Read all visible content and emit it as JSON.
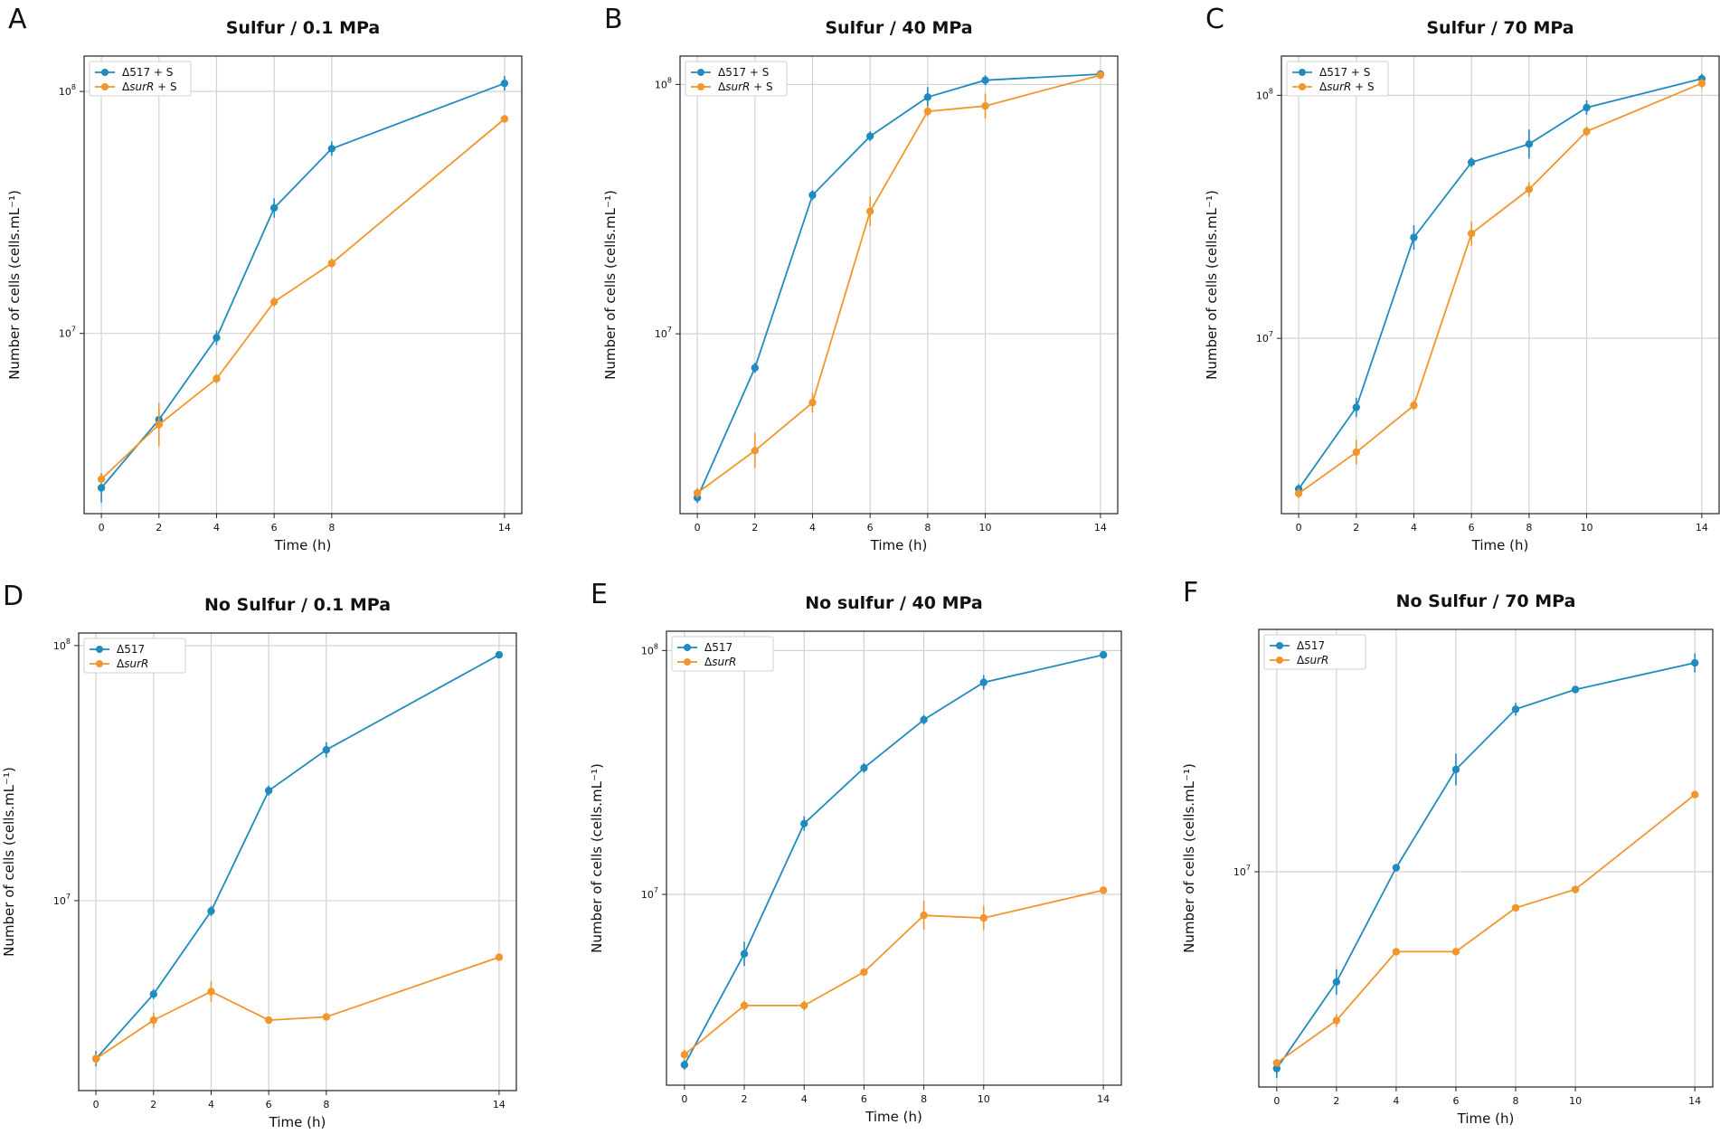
{
  "colors": {
    "blue": "#1f8bbf",
    "orange": "#f0962c"
  },
  "chart_data": [
    {
      "panel": "A",
      "type": "line",
      "title": "Sulfur / 0.1 MPa",
      "xlabel": "Time (h)",
      "ylabel": "Number of cells (cells.mL⁻¹)",
      "yscale": "log",
      "ylim": [
        1800000,
        140000000
      ],
      "xticks": [
        0,
        2,
        4,
        6,
        8,
        14
      ],
      "xlim": [
        -0.6,
        14.6
      ],
      "ytick_labels": [
        {
          "value": 10000000,
          "exp": "7"
        },
        {
          "value": 100000000,
          "exp": "8"
        }
      ],
      "legend": "top-left",
      "series": [
        {
          "name": "Δ517 + S",
          "legend_prefix": "Δ517 + S",
          "legend_italic": "",
          "legend_suffix": "",
          "color": "#1f8bbf",
          "x": [
            0,
            2,
            4,
            6,
            8,
            14
          ],
          "y": [
            2300000,
            4400000,
            9600000,
            33000000,
            58000000,
            108000000
          ],
          "err": [
            0.06,
            0.04,
            0.03,
            0.04,
            0.03,
            0.03
          ]
        },
        {
          "name": "ΔsurR + S",
          "legend_prefix": "Δ",
          "legend_italic": "surR",
          "legend_suffix": " + S",
          "color": "#f0962c",
          "x": [
            0,
            2,
            4,
            6,
            8,
            14
          ],
          "y": [
            2500000,
            4200000,
            6500000,
            13500000,
            19500000,
            77000000
          ],
          "err": [
            0.02,
            0.09,
            0.02,
            0.02,
            0.02,
            0.01
          ]
        }
      ]
    },
    {
      "panel": "B",
      "type": "line",
      "title": "Sulfur / 40 MPa",
      "xlabel": "Time (h)",
      "ylabel": "Number of cells (cells.mL⁻¹)",
      "yscale": "log",
      "ylim": [
        1900000,
        130000000
      ],
      "xticks": [
        0,
        2,
        4,
        6,
        8,
        10,
        14
      ],
      "xlim": [
        -0.6,
        14.6
      ],
      "ytick_labels": [
        {
          "value": 10000000,
          "exp": "7"
        },
        {
          "value": 100000000,
          "exp": "8"
        }
      ],
      "legend": "top-left",
      "series": [
        {
          "name": "Δ517 + S",
          "legend_prefix": "Δ517 + S",
          "legend_italic": "",
          "legend_suffix": "",
          "color": "#1f8bbf",
          "x": [
            0,
            2,
            4,
            6,
            8,
            10,
            14
          ],
          "y": [
            2200000,
            7300000,
            36000000,
            62000000,
            89000000,
            104000000,
            110000000
          ],
          "err": [
            0.02,
            0.02,
            0.02,
            0.02,
            0.04,
            0.02,
            0.01
          ]
        },
        {
          "name": "ΔsurR + S",
          "legend_prefix": "Δ",
          "legend_italic": "surR",
          "legend_suffix": " + S",
          "color": "#f0962c",
          "x": [
            0,
            2,
            4,
            6,
            8,
            10,
            14
          ],
          "y": [
            2300000,
            3400000,
            5300000,
            31000000,
            78000000,
            82000000,
            109000000
          ],
          "err": [
            0.02,
            0.07,
            0.04,
            0.06,
            0.02,
            0.05,
            0.01
          ]
        }
      ]
    },
    {
      "panel": "C",
      "type": "line",
      "title": "Sulfur / 70 MPa",
      "xlabel": "Time (h)",
      "ylabel": "Number of cells (cells.mL⁻¹)",
      "yscale": "log",
      "ylim": [
        1900000,
        145000000
      ],
      "xticks": [
        0,
        2,
        4,
        6,
        8,
        10,
        14
      ],
      "xlim": [
        -0.6,
        14.6
      ],
      "ytick_labels": [
        {
          "value": 10000000,
          "exp": "7"
        },
        {
          "value": 100000000,
          "exp": "8"
        }
      ],
      "legend": "top-left",
      "series": [
        {
          "name": "Δ517 + S",
          "legend_prefix": "Δ517 + S",
          "legend_italic": "",
          "legend_suffix": "",
          "color": "#1f8bbf",
          "x": [
            0,
            2,
            4,
            6,
            8,
            10,
            14
          ],
          "y": [
            2400000,
            5200000,
            26000000,
            53000000,
            63000000,
            89000000,
            117000000
          ],
          "err": [
            0.02,
            0.04,
            0.05,
            0.02,
            0.06,
            0.03,
            0.02
          ]
        },
        {
          "name": "ΔsurR + S",
          "legend_prefix": "Δ",
          "legend_italic": "surR",
          "legend_suffix": " + S",
          "color": "#f0962c",
          "x": [
            0,
            2,
            4,
            6,
            8,
            10,
            14
          ],
          "y": [
            2300000,
            3400000,
            5300000,
            27000000,
            41000000,
            71000000,
            112000000
          ],
          "err": [
            0.02,
            0.05,
            0.02,
            0.05,
            0.03,
            0.02,
            0.02
          ]
        }
      ]
    },
    {
      "panel": "D",
      "type": "line",
      "title": "No Sulfur / 0.1 MPa",
      "xlabel": "Time (h)",
      "ylabel": "Number of cells (cells.mL⁻¹)",
      "yscale": "log",
      "ylim": [
        1800000,
        112000000
      ],
      "xticks": [
        0,
        2,
        4,
        6,
        8,
        14
      ],
      "xlim": [
        -0.6,
        14.6
      ],
      "ytick_labels": [
        {
          "value": 10000000,
          "exp": "7"
        },
        {
          "value": 100000000,
          "exp": "8"
        }
      ],
      "legend": "top-left",
      "series": [
        {
          "name": "Δ517",
          "legend_prefix": "Δ517",
          "legend_italic": "",
          "legend_suffix": "",
          "color": "#1f8bbf",
          "x": [
            0,
            2,
            4,
            6,
            8,
            14
          ],
          "y": [
            2400000,
            4300000,
            9100000,
            27000000,
            39000000,
            92000000
          ],
          "err": [
            0.03,
            0.02,
            0.02,
            0.02,
            0.03,
            0.01
          ]
        },
        {
          "name": "ΔsurR",
          "legend_prefix": "Δ",
          "legend_italic": "surR",
          "legend_suffix": "",
          "color": "#f0962c",
          "x": [
            0,
            2,
            4,
            6,
            8,
            14
          ],
          "y": [
            2400000,
            3400000,
            4400000,
            3400000,
            3500000,
            6000000
          ],
          "err": [
            0.02,
            0.03,
            0.04,
            0.01,
            0.01,
            0.01
          ]
        }
      ]
    },
    {
      "panel": "E",
      "type": "line",
      "title": "No sulfur / 40 MPa",
      "xlabel": "Time (h)",
      "ylabel": "Number of cells (cells.mL⁻¹)",
      "yscale": "log",
      "ylim": [
        1650000,
        120000000
      ],
      "xticks": [
        0,
        2,
        4,
        6,
        8,
        10,
        14
      ],
      "xlim": [
        -0.6,
        14.6
      ],
      "ytick_labels": [
        {
          "value": 10000000,
          "exp": "7"
        },
        {
          "value": 100000000,
          "exp": "8"
        }
      ],
      "legend": "top-left",
      "series": [
        {
          "name": "Δ517",
          "legend_prefix": "Δ517",
          "legend_italic": "",
          "legend_suffix": "",
          "color": "#1f8bbf",
          "x": [
            0,
            2,
            4,
            6,
            8,
            10,
            14
          ],
          "y": [
            2000000,
            5700000,
            19500000,
            33000000,
            52000000,
            74000000,
            96000000
          ],
          "err": [
            0.02,
            0.05,
            0.03,
            0.02,
            0.02,
            0.03,
            0.01
          ]
        },
        {
          "name": "ΔsurR",
          "legend_prefix": "Δ",
          "legend_italic": "surR",
          "legend_suffix": "",
          "color": "#f0962c",
          "x": [
            0,
            2,
            4,
            6,
            8,
            10,
            14
          ],
          "y": [
            2200000,
            3500000,
            3500000,
            4800000,
            8200000,
            8000000,
            10400000
          ],
          "err": [
            0.02,
            0.02,
            0.02,
            0.01,
            0.06,
            0.05,
            0.01
          ]
        }
      ]
    },
    {
      "panel": "F",
      "type": "line",
      "title": "No Sulfur / 70 MPa",
      "xlabel": "Time (h)",
      "ylabel": "Number of cells (cells.mL⁻¹)",
      "yscale": "log",
      "ylim": [
        2100000,
        58000000
      ],
      "xticks": [
        0,
        2,
        4,
        6,
        8,
        10,
        14
      ],
      "xlim": [
        -0.6,
        14.6
      ],
      "ytick_labels": [
        {
          "value": 10000000,
          "exp": "7"
        }
      ],
      "legend": "top-left",
      "series": [
        {
          "name": "Δ517",
          "legend_prefix": "Δ517",
          "legend_italic": "",
          "legend_suffix": "",
          "color": "#1f8bbf",
          "x": [
            0,
            2,
            4,
            6,
            8,
            10,
            14
          ],
          "y": [
            2400000,
            4500000,
            10300000,
            21000000,
            32500000,
            37500000,
            45500000
          ],
          "err": [
            0.03,
            0.04,
            0.01,
            0.05,
            0.02,
            0.01,
            0.03
          ]
        },
        {
          "name": "ΔsurR",
          "legend_prefix": "Δ",
          "legend_italic": "surR",
          "legend_suffix": "",
          "color": "#f0962c",
          "x": [
            0,
            2,
            4,
            6,
            8,
            10,
            14
          ],
          "y": [
            2500000,
            3400000,
            5600000,
            5600000,
            7700000,
            8800000,
            17500000
          ],
          "err": [
            0.01,
            0.02,
            0.01,
            0.01,
            0.01,
            0.01,
            0.01
          ]
        }
      ]
    }
  ]
}
